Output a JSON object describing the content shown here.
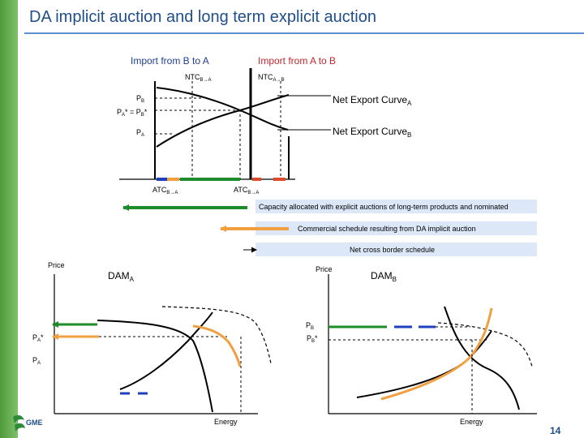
{
  "title": "DA implicit auction and long term explicit auction",
  "page_number": "14",
  "top_diagram": {
    "import_b_to_a": "Import from B to A",
    "import_a_to_b": "Import from A to B",
    "ntc_b_a": {
      "base": "NTC",
      "sub": "B→A"
    },
    "ntc_a_b": {
      "base": "NTC",
      "sub": "A→B"
    },
    "p_b": {
      "base": "P",
      "sub": "B"
    },
    "pa_star_eq_pb_star": {
      "a": "P",
      "a_sub": "A",
      "mid": "* = P",
      "b_sub": "B",
      "end": "*"
    },
    "p_a": {
      "base": "P",
      "sub": "A"
    },
    "net_export_curve_a": {
      "base": "Net Export Curve",
      "sub": "A"
    },
    "net_export_curve_b": {
      "base": "Net Export Curve",
      "sub": "B"
    },
    "atc_b_a": {
      "base": "ATC",
      "sub": "B→A"
    },
    "atc_b_a_right": {
      "base": "ATC",
      "sub": "B→A"
    }
  },
  "legend": {
    "capacity_allocated": "Capacity allocated with explicit auctions of long-term products and nominated",
    "commercial_schedule": "Commercial schedule resulting from DA implicit auction",
    "net_cross_border": "Net cross border schedule"
  },
  "dam_a": {
    "price_label": "Price",
    "title": {
      "base": "DAM",
      "sub": "A"
    },
    "pa_star": {
      "base": "P",
      "sub": "A",
      "end": "*"
    },
    "pa": {
      "base": "P",
      "sub": "A"
    },
    "energy_label": "Energy"
  },
  "dam_b": {
    "price_label": "Price",
    "title": {
      "base": "DAM",
      "sub": "B"
    },
    "pb": {
      "base": "P",
      "sub": "B"
    },
    "pb_star": {
      "base": "P",
      "sub": "B",
      "end": "*"
    },
    "energy_label": "Energy"
  },
  "colors": {
    "title": "#1f4e8c",
    "green": "#1e8c2a",
    "orange": "#f0a040",
    "blue": "#1f3fbf",
    "red": "#e04a2a",
    "import_b_a_text": "#1f3f8c",
    "import_a_b_text": "#c0282a",
    "legend_box": "#dce8f8"
  },
  "logo_text": "GME"
}
